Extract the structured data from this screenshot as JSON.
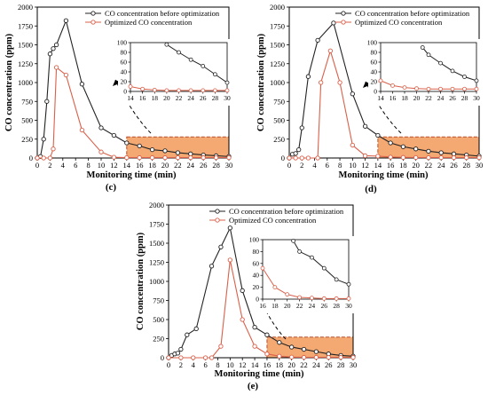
{
  "colors": {
    "before": "#222222",
    "optimized": "#d9604a",
    "box_fill": "#f4a872",
    "box_stroke": "#b8502c",
    "panel_stroke": "#000000"
  },
  "legend": {
    "before_label": "CO concentration before optimization",
    "optimized_label": "Optimized CO concentration"
  },
  "chart_data": [
    {
      "id": "c",
      "panel_label": "(c)",
      "type": "line",
      "xlabel": "Monitoring time (min)",
      "ylabel": "CO concentration (ppm)",
      "xlim": [
        0,
        30
      ],
      "ylim": [
        0,
        2000
      ],
      "xticks": [
        0,
        2,
        4,
        6,
        8,
        10,
        12,
        14,
        16,
        18,
        20,
        22,
        24,
        26,
        28,
        30
      ],
      "yticks": [
        0,
        250,
        500,
        750,
        1000,
        1250,
        1500,
        1750,
        2000
      ],
      "series": [
        {
          "name": "CO concentration before optimization",
          "x": [
            0,
            0.5,
            1,
            1.5,
            2,
            2.5,
            3,
            4.5,
            7,
            10,
            12,
            14,
            16,
            18,
            20,
            22,
            24,
            26,
            28,
            30
          ],
          "y": [
            0,
            20,
            250,
            750,
            1380,
            1450,
            1500,
            1820,
            980,
            400,
            300,
            200,
            160,
            110,
            95,
            70,
            55,
            40,
            30,
            20
          ]
        },
        {
          "name": "Optimized CO concentration",
          "x": [
            0,
            1,
            2,
            2.5,
            3,
            4.5,
            7,
            10,
            12,
            14,
            16,
            18,
            20,
            22,
            24,
            26,
            28,
            30
          ],
          "y": [
            0,
            0,
            0,
            120,
            1200,
            1100,
            370,
            80,
            10,
            5,
            5,
            5,
            5,
            5,
            5,
            5,
            5,
            5
          ]
        }
      ],
      "highlight_box": {
        "x0": 14,
        "x1": 30,
        "y0": 0,
        "y1": 280
      },
      "inset": {
        "xlim": [
          14,
          30
        ],
        "ylim": [
          0,
          100
        ],
        "xticks": [
          14,
          16,
          18,
          20,
          22,
          24,
          26,
          28,
          30
        ],
        "yticks": [
          0,
          20,
          40,
          60,
          80,
          100
        ],
        "series": [
          {
            "x": [
              20,
              22,
              24,
              26,
              28,
              30
            ],
            "y": [
              96,
              80,
              65,
              52,
              35,
              18
            ]
          },
          {
            "x": [
              14,
              16,
              18,
              20,
              22,
              24,
              26,
              28,
              30
            ],
            "y": [
              10,
              5,
              3,
              2,
              2,
              2,
              2,
              2,
              2
            ]
          }
        ]
      }
    },
    {
      "id": "d",
      "panel_label": "(d)",
      "type": "line",
      "xlabel": "Monitoring time (min)",
      "ylabel": "CO concentration (ppm)",
      "xlim": [
        0,
        30
      ],
      "ylim": [
        0,
        2000
      ],
      "xticks": [
        0,
        2,
        4,
        6,
        8,
        10,
        12,
        14,
        16,
        18,
        20,
        22,
        24,
        26,
        28,
        30
      ],
      "yticks": [
        0,
        250,
        500,
        750,
        1000,
        1250,
        1500,
        1750,
        2000
      ],
      "series": [
        {
          "name": "CO concentration before optimization",
          "x": [
            0,
            0.5,
            1,
            1.5,
            2,
            3,
            4.5,
            7,
            10,
            12,
            14,
            16,
            18,
            20,
            22,
            24,
            26,
            28,
            30
          ],
          "y": [
            0,
            50,
            60,
            110,
            400,
            1080,
            1560,
            1790,
            850,
            420,
            300,
            200,
            150,
            120,
            90,
            70,
            55,
            40,
            25
          ]
        },
        {
          "name": "Optimized CO concentration",
          "x": [
            0,
            1,
            2,
            3,
            4.5,
            5,
            6.5,
            8,
            10,
            12,
            14,
            16,
            18,
            20,
            22,
            24,
            26,
            28,
            30
          ],
          "y": [
            0,
            0,
            0,
            0,
            0,
            1000,
            1420,
            1000,
            170,
            30,
            25,
            12,
            8,
            6,
            5,
            5,
            5,
            5,
            5
          ]
        }
      ],
      "highlight_box": {
        "x0": 14,
        "x1": 30,
        "y0": 0,
        "y1": 280
      },
      "inset": {
        "xlim": [
          14,
          30
        ],
        "ylim": [
          0,
          100
        ],
        "xticks": [
          14,
          16,
          18,
          20,
          22,
          24,
          26,
          28,
          30
        ],
        "yticks": [
          0,
          20,
          40,
          60,
          80,
          100
        ],
        "series": [
          {
            "x": [
              21,
              22,
              24,
              26,
              28,
              30
            ],
            "y": [
              90,
              75,
              58,
              42,
              30,
              22
            ]
          },
          {
            "x": [
              14,
              16,
              18,
              20,
              22,
              24,
              26,
              28,
              30
            ],
            "y": [
              22,
              12,
              8,
              6,
              5,
              5,
              5,
              5,
              5
            ]
          }
        ]
      }
    },
    {
      "id": "e",
      "panel_label": "(e)",
      "type": "line",
      "xlabel": "Monitoring time (min)",
      "ylabel": "CO concentration (ppm)",
      "xlim": [
        0,
        30
      ],
      "ylim": [
        0,
        2000
      ],
      "xticks": [
        0,
        2,
        4,
        6,
        8,
        10,
        12,
        14,
        16,
        18,
        20,
        22,
        24,
        26,
        28,
        30
      ],
      "yticks": [
        0,
        250,
        500,
        750,
        1000,
        1250,
        1500,
        1750,
        2000
      ],
      "series": [
        {
          "name": "CO concentration before optimization",
          "x": [
            0,
            0.5,
            1,
            1.5,
            2,
            3,
            4.5,
            7,
            8.5,
            10,
            12,
            14,
            16,
            18,
            20,
            22,
            24,
            26,
            28,
            30
          ],
          "y": [
            0,
            30,
            50,
            60,
            110,
            300,
            380,
            1200,
            1450,
            1700,
            880,
            400,
            300,
            200,
            140,
            110,
            80,
            50,
            30,
            20
          ]
        },
        {
          "name": "Optimized CO concentration",
          "x": [
            0,
            2,
            4,
            6,
            7,
            8.5,
            10,
            12,
            14,
            16,
            18,
            20,
            22,
            24,
            26,
            28,
            30
          ],
          "y": [
            0,
            0,
            0,
            0,
            0,
            150,
            1280,
            500,
            150,
            50,
            20,
            8,
            5,
            5,
            5,
            5,
            5
          ]
        }
      ],
      "highlight_box": {
        "x0": 16,
        "x1": 30,
        "y0": 0,
        "y1": 270
      },
      "inset": {
        "xlim": [
          16,
          30
        ],
        "ylim": [
          0,
          100
        ],
        "xticks": [
          16,
          18,
          20,
          22,
          24,
          26,
          28,
          30
        ],
        "yticks": [
          0,
          20,
          40,
          60,
          80,
          100
        ],
        "series": [
          {
            "x": [
              21,
              22,
              24,
              26,
              28,
              30
            ],
            "y": [
              98,
              80,
              70,
              52,
              33,
              25
            ]
          },
          {
            "x": [
              16,
              18,
              20,
              22,
              24,
              26,
              28,
              30
            ],
            "y": [
              52,
              20,
              8,
              3,
              2,
              1,
              1,
              1
            ]
          }
        ]
      }
    }
  ]
}
